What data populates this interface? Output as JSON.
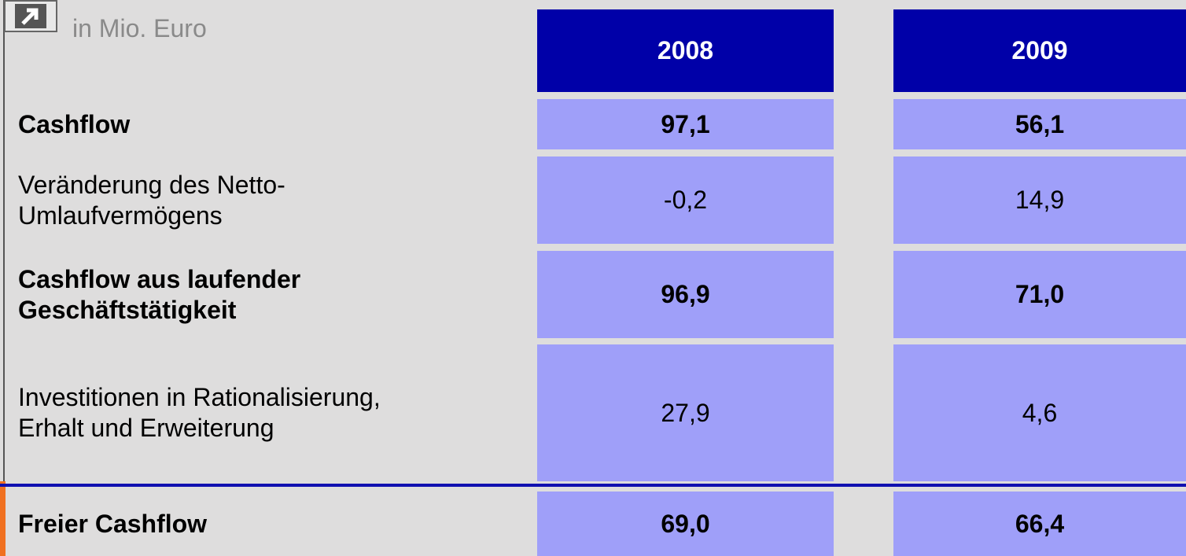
{
  "caption": "in Mio. Euro",
  "table": {
    "header": [
      "2008",
      "2009"
    ],
    "rows": [
      {
        "label": "Cashflow",
        "bold": true,
        "values": [
          "97,1",
          "56,1"
        ]
      },
      {
        "label": "Veränderung des Netto-Umlaufvermögens",
        "bold": false,
        "values": [
          "-0,2",
          "14,9"
        ]
      },
      {
        "label": "Cashflow aus laufender Geschäftstätigkeit",
        "bold": true,
        "values": [
          "96,9",
          "71,0"
        ]
      },
      {
        "label": "Investitionen in Rationalisierung, Erhalt und Erweiterung",
        "bold": false,
        "values": [
          "27,9",
          "4,6"
        ]
      },
      {
        "label": "Freier Cashflow",
        "bold": true,
        "values": [
          "69,0",
          "66,4"
        ]
      }
    ]
  }
}
